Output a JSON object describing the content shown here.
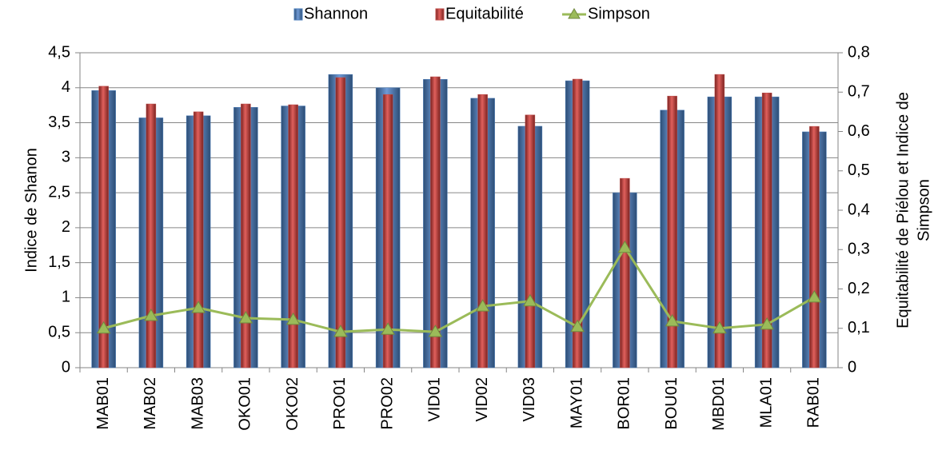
{
  "chart_data": {
    "type": "bar-line",
    "ylabel": "Indice de Shanon",
    "y2label": [
      "Equitabilité de Piélou et Indice de",
      "Simpson"
    ],
    "categories": [
      "MAB01",
      "MAB02",
      "MAB03",
      "OKO01",
      "OKO02",
      "PRO01",
      "PRO02",
      "VID01",
      "VID02",
      "VID03",
      "MAY01",
      "BOR01",
      "BOU01",
      "MBD01",
      "MLA01",
      "RAB01"
    ],
    "series": [
      {
        "name": "Shannon",
        "color": "#4f81bd",
        "kind": "bar",
        "values": [
          3.96,
          3.57,
          3.6,
          3.72,
          3.74,
          4.19,
          4.0,
          4.12,
          3.85,
          3.45,
          4.1,
          2.5,
          3.68,
          3.87,
          3.87,
          3.37
        ]
      },
      {
        "name": "Equitabilité",
        "color": "#c0504d",
        "kind": "bar",
        "axis": "y2",
        "values": [
          0.715,
          0.67,
          0.65,
          0.67,
          0.668,
          0.737,
          0.694,
          0.739,
          0.694,
          0.642,
          0.733,
          0.481,
          0.69,
          0.745,
          0.698,
          0.613
        ]
      },
      {
        "name": "Simpson",
        "color": "#9bbb59",
        "kind": "line",
        "axis": "y2",
        "values": [
          0.1,
          0.132,
          0.152,
          0.126,
          0.122,
          0.091,
          0.097,
          0.091,
          0.156,
          0.169,
          0.104,
          0.305,
          0.118,
          0.1,
          0.11,
          0.179
        ]
      }
    ],
    "ylim": [
      0,
      4.5
    ],
    "yticks": [
      0,
      {
        "value": 0.5,
        "label": "0,5"
      },
      1,
      {
        "value": 1.5,
        "label": "1,5"
      },
      2,
      {
        "value": 2.5,
        "label": "2,5"
      },
      3,
      {
        "value": 3.5,
        "label": "3,5"
      },
      4,
      {
        "value": 4.5,
        "label": "4,5"
      }
    ],
    "y2lim": [
      0,
      0.8
    ],
    "y2ticks": [
      0,
      {
        "value": 0.1,
        "label": "0,1"
      },
      {
        "value": 0.2,
        "label": "0,2"
      },
      {
        "value": 0.3,
        "label": "0,3"
      },
      {
        "value": 0.4,
        "label": "0,4"
      },
      {
        "value": 0.5,
        "label": "0,5"
      },
      {
        "value": 0.6,
        "label": "0,6"
      },
      {
        "value": 0.7,
        "label": "0,7"
      },
      {
        "value": 0.8,
        "label": "0,8"
      }
    ],
    "grid": true,
    "legend": "top"
  }
}
